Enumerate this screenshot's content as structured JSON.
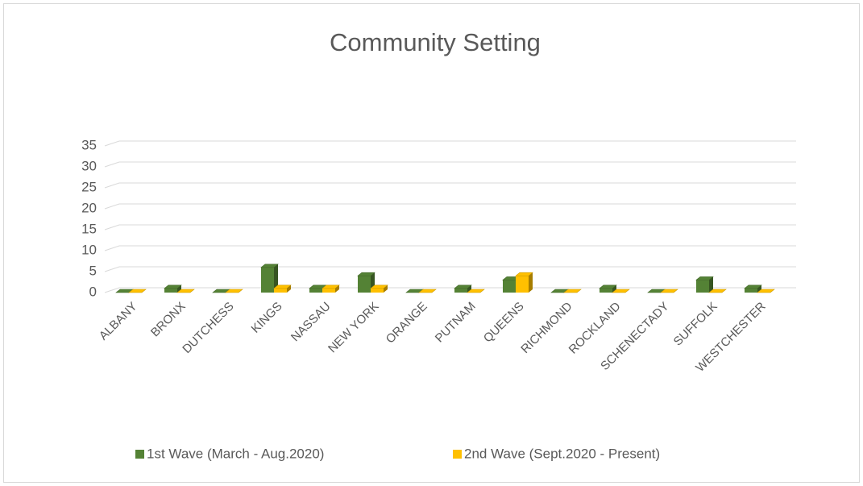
{
  "chart_data": {
    "type": "bar3d",
    "title": "Community Setting",
    "categories": [
      "ALBANY",
      "BRONX",
      "DUTCHESS",
      "KINGS",
      "NASSAU",
      "NEW YORK",
      "ORANGE",
      "PUTNAM",
      "QUEENS",
      "RICHMOND",
      "ROCKLAND",
      "SCHENECTADY",
      "SUFFOLK",
      "WESTCHESTER"
    ],
    "series": [
      {
        "name": "1st Wave (March - Aug.2020)",
        "color": "#548235",
        "values": [
          0,
          1,
          0,
          6,
          1,
          4,
          0,
          1,
          3,
          0,
          1,
          0,
          3,
          1
        ]
      },
      {
        "name": "2nd Wave (Sept.2020 - Present)",
        "color": "#ffc000",
        "values": [
          0,
          0,
          0,
          1,
          1,
          1,
          0,
          0,
          4,
          0,
          0,
          0,
          0,
          0
        ]
      }
    ],
    "ylim": [
      0,
      35
    ],
    "yticks": [
      0,
      5,
      10,
      15,
      20,
      25,
      30,
      35
    ],
    "grid": true,
    "legend": "bottom"
  }
}
